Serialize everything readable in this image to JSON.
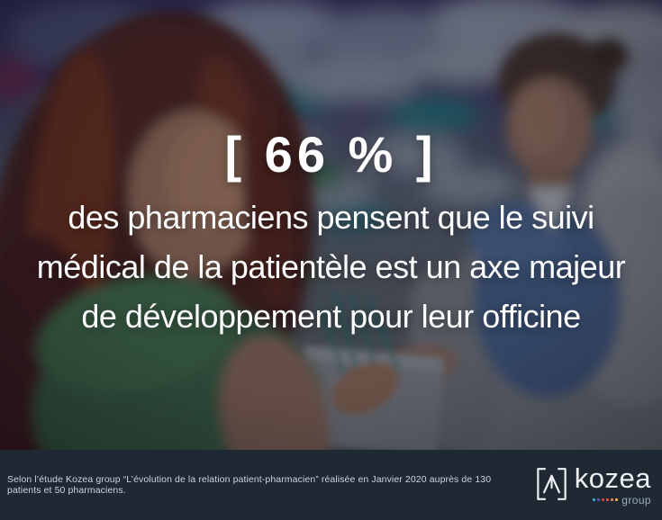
{
  "caption": {
    "stat": "[ 66 % ]",
    "line1": "des pharmaciens pensent que le suivi",
    "line2": "médical de la patientèle est un axe majeur",
    "line3": "de développement pour leur officine"
  },
  "footer": {
    "source": "Selon l’étude Kozea group “L’évolution de la relation patient-pharmacien” réalisée en Janvier 2020 auprès de 130 patients et 50 pharmaciens.",
    "logo": {
      "brand": "kozea",
      "suffix": "group",
      "mark_icon": "bracketed-caret-icon",
      "dot_colors": [
        "#3aa7c6",
        "#6058a8",
        "#d8413d",
        "#de5639",
        "#ec8b43",
        "#f1ae4d"
      ]
    }
  },
  "colors": {
    "footer_background": "#1e2934",
    "caption_text": "#ffffff",
    "logo_text": "#eef1f4",
    "logo_suffix_text": "#9fabb6",
    "bag_handle_teal": "#1e7a6e"
  }
}
